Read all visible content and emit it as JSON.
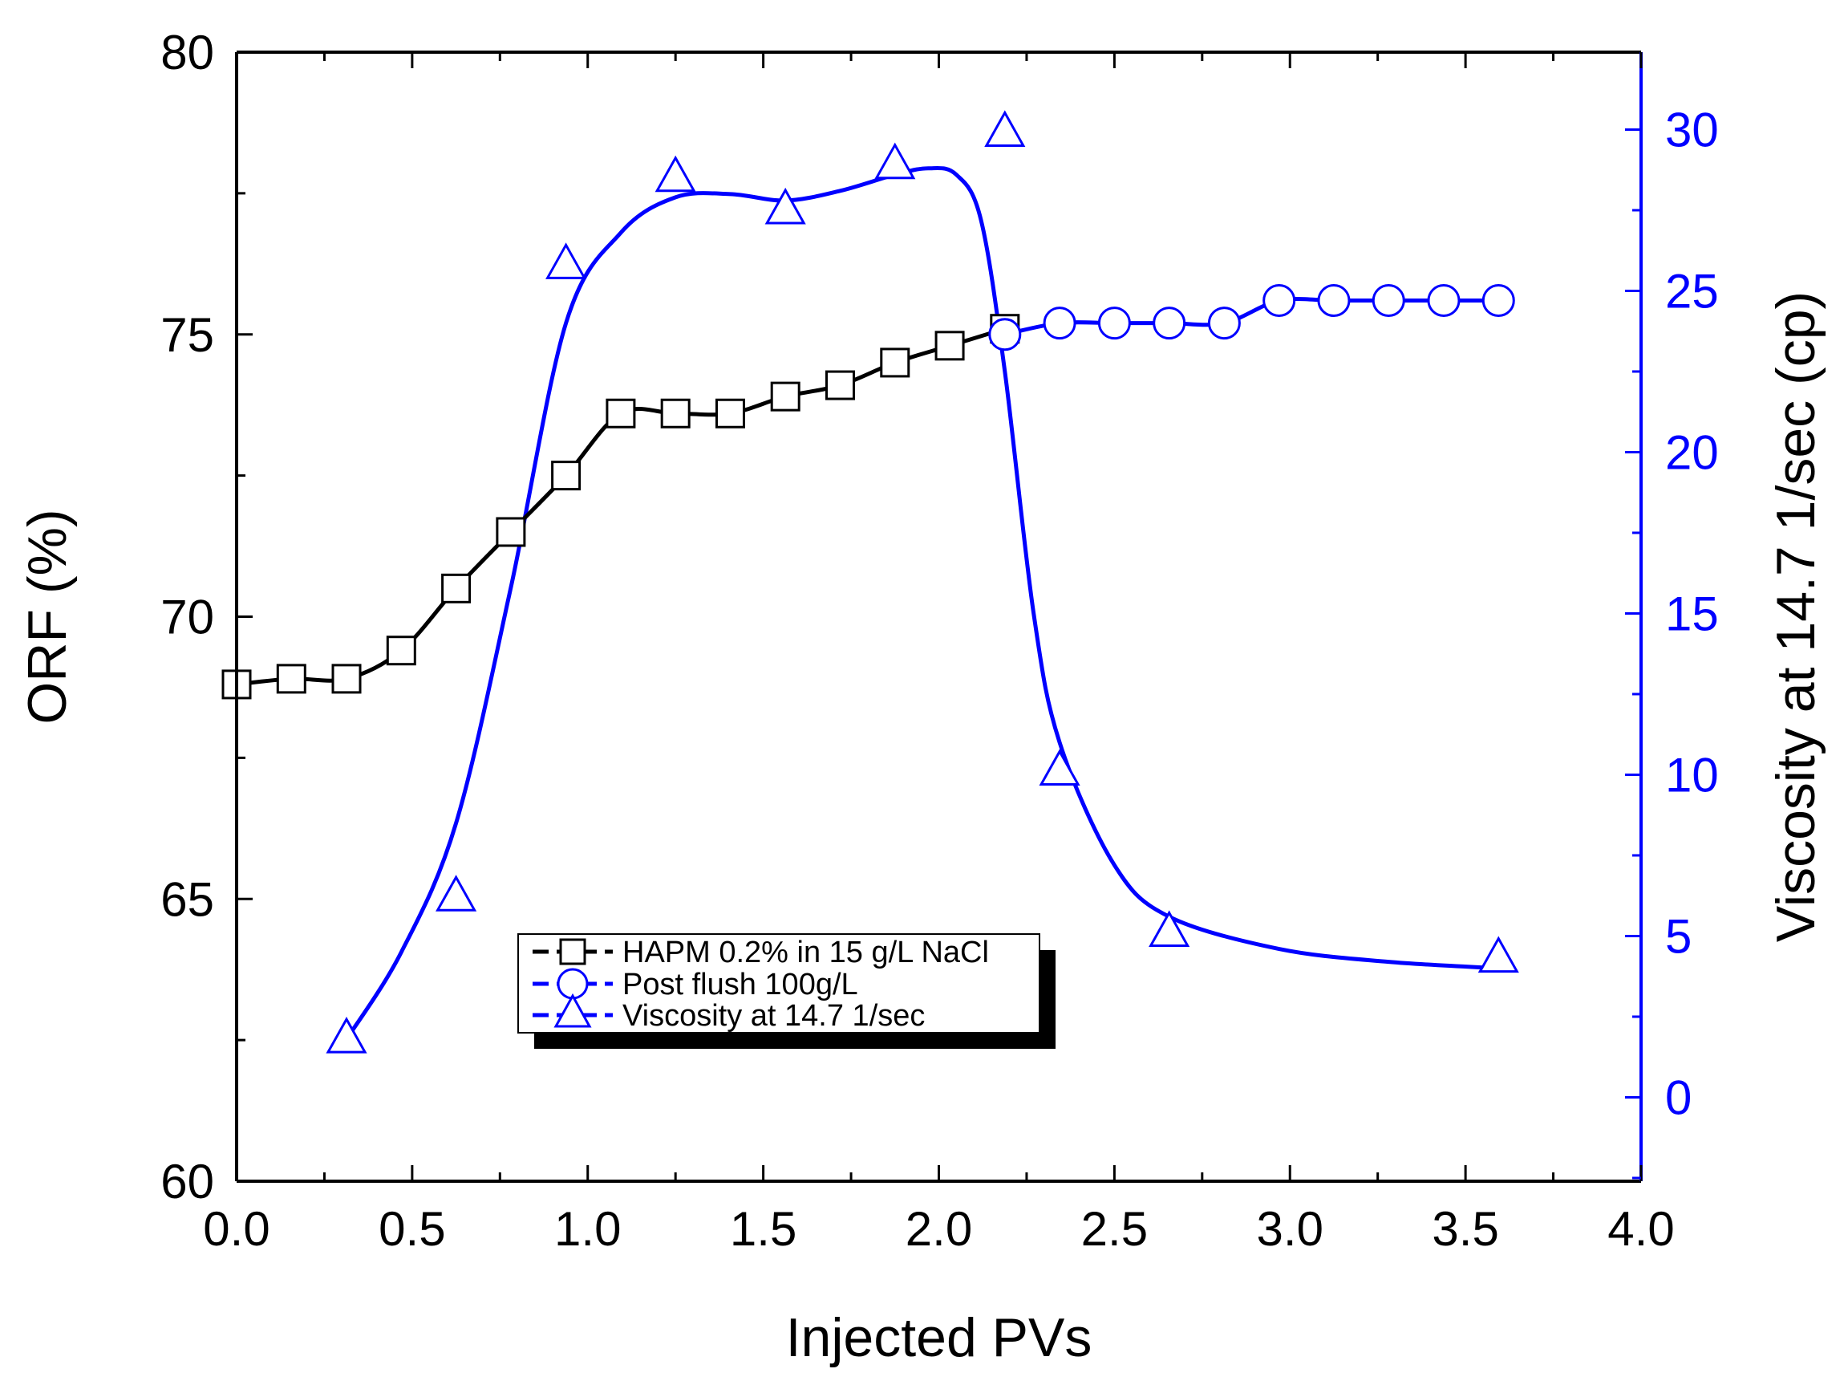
{
  "chart_data": {
    "type": "line",
    "title": "",
    "xlabel": "Injected PVs",
    "ylabel": "ORF (%)",
    "y2label": "Viscosity at 14.7 1/sec (cp)",
    "xlim": [
      0,
      4
    ],
    "ylim": [
      60,
      80
    ],
    "y2lim": [
      -2.6,
      32.4
    ],
    "x_ticks": [
      0.0,
      0.5,
      1.0,
      1.5,
      2.0,
      2.5,
      3.0,
      3.5,
      4.0
    ],
    "x_tick_labels": [
      "0.0",
      "0.5",
      "1.0",
      "1.5",
      "2.0",
      "2.5",
      "3.0",
      "3.5",
      "4.0"
    ],
    "y_ticks": [
      60,
      65,
      70,
      75,
      80
    ],
    "y_tick_labels": [
      "60",
      "65",
      "70",
      "75",
      "80"
    ],
    "y2_ticks": [
      0,
      5,
      10,
      15,
      20,
      25,
      30
    ],
    "y2_tick_labels": [
      "0",
      "5",
      "10",
      "15",
      "20",
      "25",
      "30"
    ],
    "legend_position": "bottom-center",
    "colors": {
      "axis_left": "#000000",
      "axis_right": "#0000ff",
      "series_black": "#000000",
      "series_blue": "#0000ff"
    },
    "series": [
      {
        "name": "HAPM 0.2% in 15 g/L NaCl",
        "axis": "left",
        "marker": "square",
        "color": "#000000",
        "x": [
          0.0,
          0.156,
          0.313,
          0.469,
          0.625,
          0.781,
          0.938,
          1.094,
          1.25,
          1.406,
          1.563,
          1.719,
          1.875,
          2.031,
          2.188
        ],
        "y": [
          68.8,
          68.9,
          68.9,
          69.4,
          70.5,
          71.5,
          72.5,
          73.6,
          73.6,
          73.6,
          73.9,
          74.1,
          74.5,
          74.8,
          75.1
        ]
      },
      {
        "name": "Post flush 100g/L",
        "axis": "left",
        "marker": "circle",
        "color": "#0000ff",
        "x": [
          2.188,
          2.344,
          2.5,
          2.656,
          2.813,
          2.969,
          3.125,
          3.281,
          3.438,
          3.594
        ],
        "y": [
          75.0,
          75.2,
          75.2,
          75.2,
          75.2,
          75.6,
          75.6,
          75.6,
          75.6,
          75.6
        ]
      },
      {
        "name": "Viscosity at 14.7 1/sec",
        "axis": "right",
        "marker": "triangle",
        "color": "#0000ff",
        "x": [
          0.313,
          0.625,
          0.938,
          1.25,
          1.563,
          1.875,
          2.188,
          2.344,
          2.656,
          3.594
        ],
        "y": [
          1.8,
          6.2,
          25.8,
          28.5,
          27.5,
          28.9,
          29.9,
          10.1,
          5.1,
          4.3
        ],
        "curve": {
          "x": [
            0.313,
            0.469,
            0.625,
            0.781,
            0.938,
            1.094,
            1.25,
            1.406,
            1.563,
            1.719,
            1.875,
            1.97,
            2.05,
            2.12,
            2.188,
            2.27,
            2.344,
            2.5,
            2.656,
            2.969,
            3.281,
            3.594
          ],
          "y": [
            1.8,
            4.5,
            8.5,
            15.8,
            24.0,
            26.8,
            27.9,
            28.0,
            27.8,
            28.1,
            28.6,
            28.8,
            28.6,
            27.2,
            22.5,
            15.0,
            11.0,
            7.2,
            5.6,
            4.6,
            4.2,
            4.0
          ]
        }
      }
    ]
  }
}
